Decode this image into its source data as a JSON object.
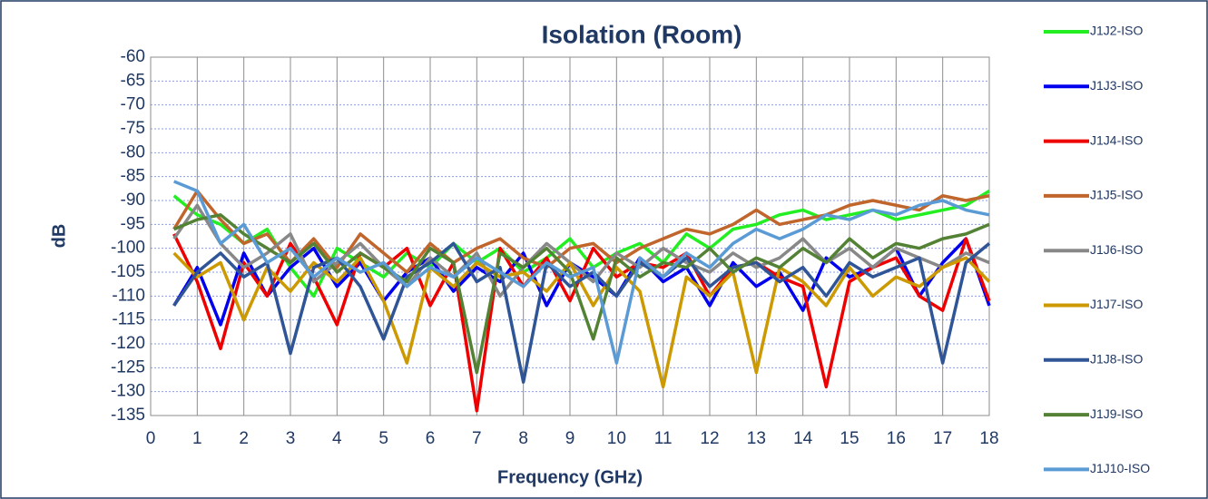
{
  "chart_data": {
    "type": "line",
    "title": "Isolation (Room)",
    "x_label": "Frequency (GHz)",
    "y_label": "dB",
    "x": [
      0.5,
      1,
      1.5,
      2,
      2.5,
      3,
      3.5,
      4,
      4.5,
      5,
      5.5,
      6,
      6.5,
      7,
      7.5,
      8,
      8.5,
      9,
      9.5,
      10,
      10.5,
      11,
      11.5,
      12,
      12.5,
      13,
      13.5,
      14,
      14.5,
      15,
      15.5,
      16,
      16.5,
      17,
      17.5,
      18
    ],
    "xlim": [
      0,
      18
    ],
    "xticks": [
      0,
      1,
      2,
      3,
      4,
      5,
      6,
      7,
      8,
      9,
      10,
      11,
      12,
      13,
      14,
      15,
      16,
      17,
      18
    ],
    "ylim": [
      -135,
      -60
    ],
    "yticks": [
      -60,
      -65,
      -70,
      -75,
      -80,
      -85,
      -90,
      -95,
      -100,
      -105,
      -110,
      -115,
      -120,
      -125,
      -130,
      -135
    ],
    "grid": true,
    "legend": "right",
    "series": [
      {
        "name": "J1J2-ISO",
        "color": "#22ee22",
        "values": [
          -89,
          -93,
          -95,
          -99,
          -96,
          -104,
          -110,
          -100,
          -103,
          -106,
          -101,
          -104,
          -99,
          -103,
          -100,
          -105,
          -102,
          -98,
          -104,
          -101,
          -99,
          -103,
          -97,
          -100,
          -96,
          -95,
          -93,
          -92,
          -94,
          -93,
          -92,
          -94,
          -93,
          -92,
          -91,
          -88
        ]
      },
      {
        "name": "J1J3-ISO",
        "color": "#0000ee",
        "values": [
          -112,
          -104,
          -116,
          -101,
          -110,
          -104,
          -100,
          -108,
          -103,
          -111,
          -105,
          -102,
          -109,
          -104,
          -107,
          -101,
          -112,
          -103,
          -106,
          -110,
          -102,
          -107,
          -104,
          -112,
          -103,
          -108,
          -105,
          -113,
          -102,
          -106,
          -104,
          -100,
          -110,
          -103,
          -98,
          -112
        ]
      },
      {
        "name": "J1J4-ISO",
        "color": "#ee0000",
        "values": [
          -97,
          -107,
          -121,
          -103,
          -110,
          -99,
          -106,
          -116,
          -101,
          -104,
          -100,
          -112,
          -103,
          -134,
          -100,
          -108,
          -102,
          -111,
          -100,
          -106,
          -103,
          -104,
          -101,
          -110,
          -104,
          -103,
          -106,
          -108,
          -129,
          -107,
          -104,
          -102,
          -110,
          -113,
          -98,
          -111
        ]
      },
      {
        "name": "J1J5-ISO",
        "color": "#c0652c",
        "values": [
          -96,
          -88,
          -94,
          -99,
          -97,
          -103,
          -98,
          -104,
          -97,
          -101,
          -105,
          -99,
          -103,
          -100,
          -98,
          -102,
          -104,
          -100,
          -99,
          -103,
          -100,
          -98,
          -96,
          -97,
          -95,
          -92,
          -95,
          -94,
          -93,
          -91,
          -90,
          -91,
          -92,
          -89,
          -90,
          -89
        ]
      },
      {
        "name": "J1J6-ISO",
        "color": "#888888",
        "values": [
          -98,
          -91,
          -99,
          -104,
          -101,
          -97,
          -107,
          -103,
          -99,
          -104,
          -108,
          -102,
          -106,
          -101,
          -110,
          -104,
          -99,
          -103,
          -107,
          -101,
          -104,
          -100,
          -103,
          -105,
          -101,
          -104,
          -102,
          -98,
          -103,
          -100,
          -104,
          -100,
          -102,
          -104,
          -101,
          -103
        ]
      },
      {
        "name": "J1J7-ISO",
        "color": "#cc9900",
        "values": [
          -101,
          -106,
          -103,
          -115,
          -104,
          -109,
          -103,
          -107,
          -102,
          -111,
          -124,
          -104,
          -108,
          -103,
          -106,
          -105,
          -109,
          -103,
          -112,
          -104,
          -109,
          -129,
          -106,
          -110,
          -105,
          -126,
          -104,
          -107,
          -112,
          -104,
          -110,
          -106,
          -108,
          -104,
          -102,
          -107
        ]
      },
      {
        "name": "J1J8-ISO",
        "color": "#2f5597",
        "values": [
          -112,
          -105,
          -101,
          -106,
          -103,
          -122,
          -104,
          -102,
          -108,
          -119,
          -106,
          -103,
          -99,
          -107,
          -104,
          -128,
          -103,
          -108,
          -105,
          -110,
          -103,
          -106,
          -102,
          -108,
          -104,
          -103,
          -107,
          -104,
          -110,
          -103,
          -106,
          -104,
          -102,
          -124,
          -103,
          -99
        ]
      },
      {
        "name": "J1J9-ISO",
        "color": "#548235",
        "values": [
          -96,
          -94,
          -93,
          -97,
          -100,
          -103,
          -99,
          -105,
          -101,
          -104,
          -107,
          -100,
          -103,
          -126,
          -101,
          -104,
          -100,
          -105,
          -119,
          -102,
          -106,
          -103,
          -104,
          -100,
          -105,
          -102,
          -104,
          -100,
          -103,
          -98,
          -102,
          -99,
          -100,
          -98,
          -97,
          -95
        ]
      },
      {
        "name": "J1J10-ISO",
        "color": "#5b9bd5",
        "values": [
          -86,
          -88,
          -99,
          -95,
          -103,
          -100,
          -106,
          -102,
          -105,
          -103,
          -108,
          -104,
          -106,
          -102,
          -105,
          -108,
          -103,
          -106,
          -104,
          -124,
          -102,
          -106,
          -101,
          -104,
          -99,
          -96,
          -98,
          -96,
          -93,
          -94,
          -92,
          -93,
          -91,
          -90,
          -92,
          -93
        ]
      }
    ]
  }
}
